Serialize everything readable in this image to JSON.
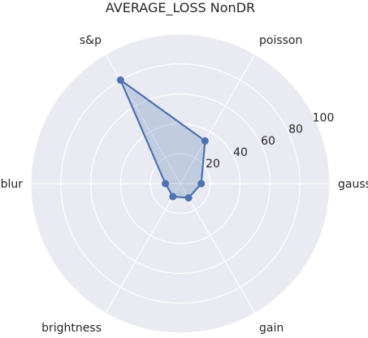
{
  "chart_data": {
    "type": "radar",
    "title": "AVERAGE_LOSS NonDR",
    "categories": [
      "gauss",
      "poisson",
      "s&p",
      "blur",
      "brightness",
      "gain"
    ],
    "series": [
      {
        "values": [
          14,
          33,
          80,
          10,
          10,
          11
        ]
      }
    ],
    "rlim": [
      0,
      100
    ],
    "r_ticks": [
      "20",
      "40",
      "60",
      "80",
      "100"
    ],
    "grid": true,
    "colors": {
      "background": "#eaeaf2",
      "grid": "#ffffff",
      "line": "#4c72b0",
      "fill": "#4c72b0"
    }
  }
}
